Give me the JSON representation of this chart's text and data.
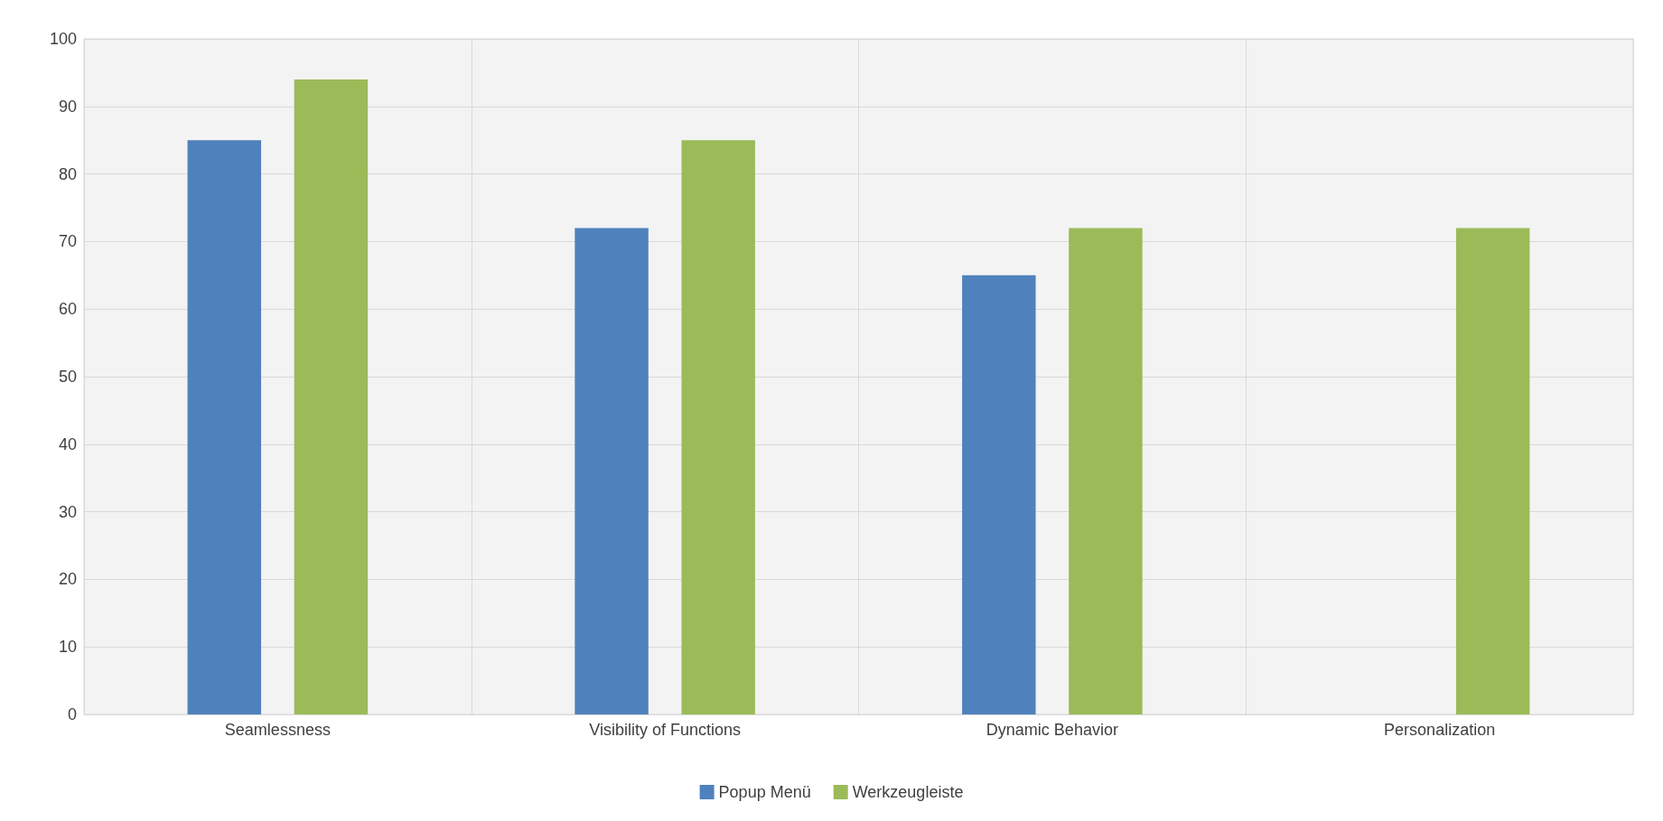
{
  "chart_data": {
    "type": "bar",
    "categories": [
      "Seamlessness",
      "Visibility of Functions",
      "Dynamic Behavior",
      "Personalization"
    ],
    "series": [
      {
        "name": "Popup Menü",
        "color": "#4f81bd",
        "values": [
          85,
          72,
          65,
          null
        ]
      },
      {
        "name": "Werkzeugleiste",
        "color": "#9bbb59",
        "values": [
          94,
          85,
          72,
          72
        ]
      }
    ],
    "ylim": [
      0,
      100
    ],
    "yticks": [
      0,
      10,
      20,
      30,
      40,
      50,
      60,
      70,
      80,
      90,
      100
    ],
    "grid": true,
    "legend": "bottom"
  }
}
